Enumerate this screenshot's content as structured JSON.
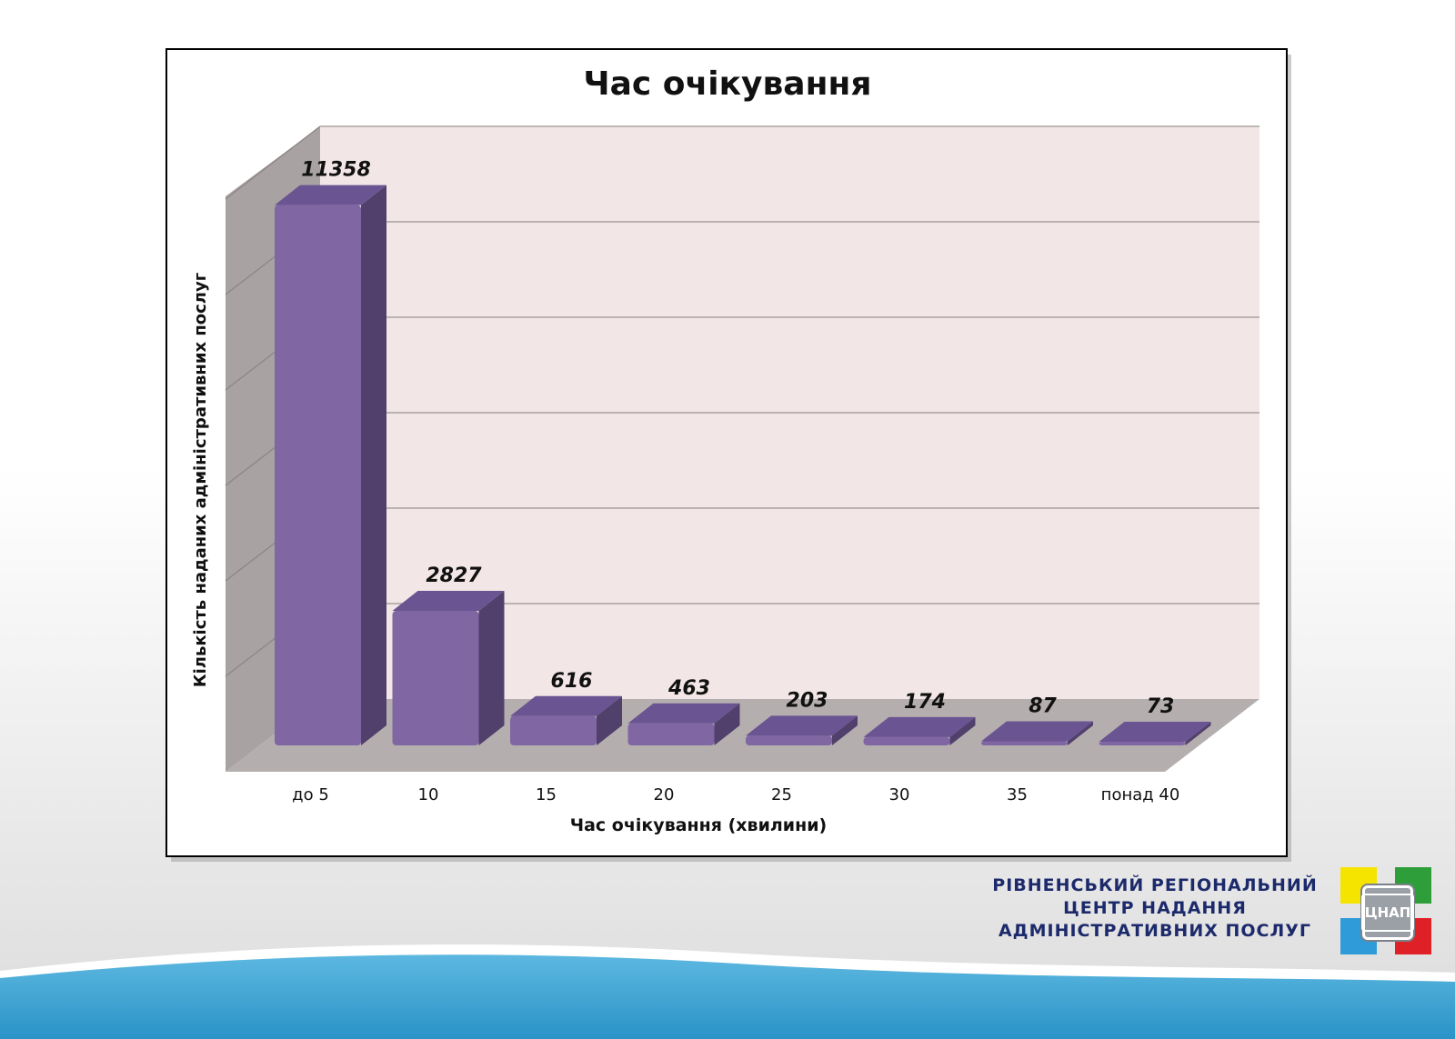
{
  "chart_data": {
    "type": "bar",
    "title": "Час очікування",
    "xlabel": "Час очікування  (хвилини)",
    "ylabel": "Кількість наданих адміністративних послуг",
    "categories": [
      "до  5",
      "10",
      "15",
      "20",
      "25",
      "30",
      "35",
      "понад 40"
    ],
    "values": [
      11358,
      2827,
      616,
      463,
      203,
      174,
      87,
      73
    ],
    "ylim": [
      0,
      12000
    ],
    "grid": true,
    "legend": "none",
    "style": "3d-column"
  },
  "colors": {
    "bar_front": "#8066a3",
    "bar_top": "#6a5491",
    "bar_side": "#50406b",
    "back_wall": "#f3e6e6",
    "side_wall": "#a8a2a2",
    "floor": "#b5aeae",
    "ocean": "#2f9bcf"
  },
  "footer": {
    "org_line1": "РІВНЕНСЬКИЙ РЕГІОНАЛЬНИЙ",
    "org_line2": "ЦЕНТР НАДАННЯ",
    "org_line3": "АДМІНІСТРАТИВНИХ ПОСЛУГ",
    "logo_text": "ЦНАП"
  }
}
